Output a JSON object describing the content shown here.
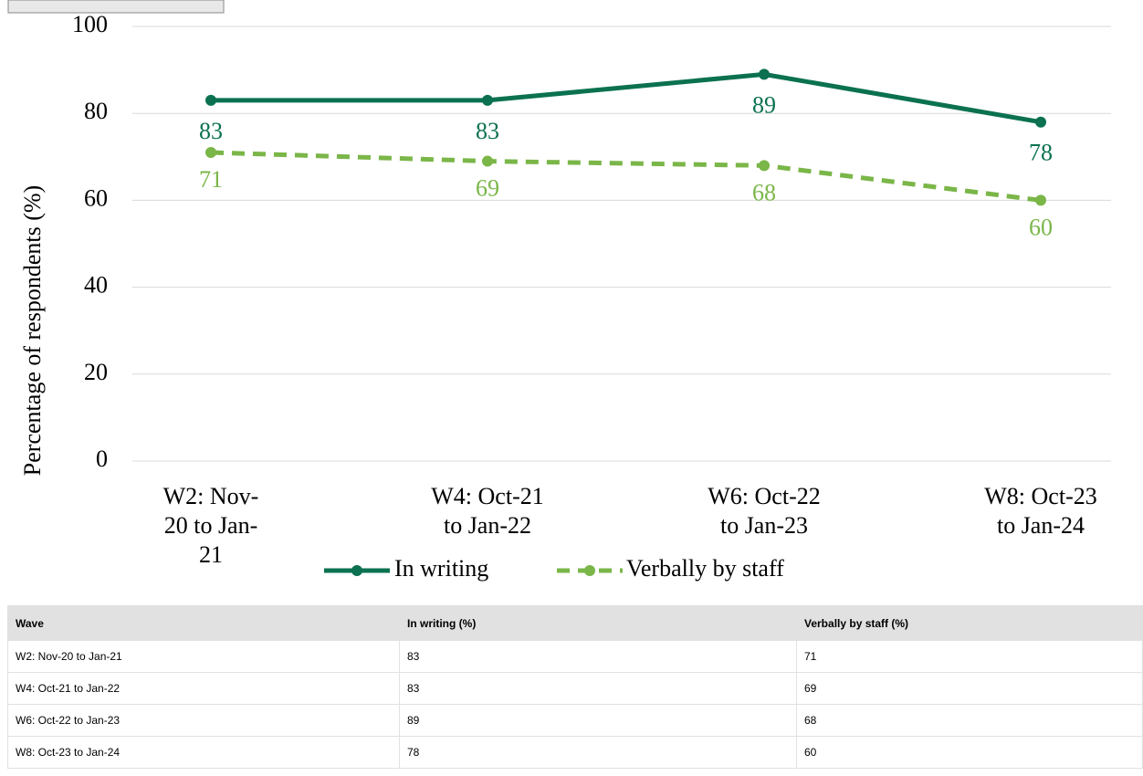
{
  "chart_data": {
    "type": "line",
    "y_label": "Percentage of respondents (%)",
    "categories": [
      "W2: Nov-20 to Jan-21",
      "W4: Oct-21 to Jan-22",
      "W6: Oct-22 to Jan-23",
      "W8: Oct-23 to Jan-24"
    ],
    "series": [
      {
        "name": "In writing",
        "color": "#0b7150",
        "line_style": "solid",
        "values": [
          83,
          83,
          89,
          78
        ]
      },
      {
        "name": "Verbally by staff",
        "color": "#7ab648",
        "line_style": "dashed",
        "values": [
          71,
          69,
          68,
          60
        ]
      }
    ],
    "ylim": [
      0,
      100
    ],
    "yticks": [
      0,
      20,
      40,
      60,
      80,
      100
    ],
    "grid": true,
    "legend": "bottom"
  },
  "table": {
    "header": [
      "Wave",
      "In writing (%)",
      "Verbally by staff (%)"
    ],
    "rows": [
      [
        "W2: Nov-20 to Jan-21",
        "83",
        "71"
      ],
      [
        "W4: Oct-21 to Jan-22",
        "83",
        "69"
      ],
      [
        "W6: Oct-22 to Jan-23",
        "89",
        "68"
      ],
      [
        "W8: Oct-23 to Jan-24",
        "78",
        "60"
      ]
    ]
  }
}
